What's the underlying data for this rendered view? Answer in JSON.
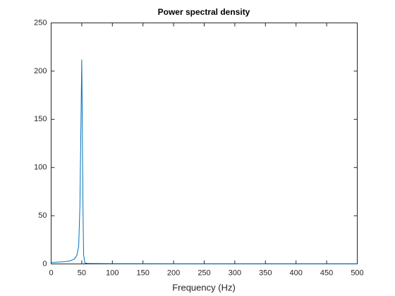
{
  "chart_data": {
    "type": "line",
    "title": "Power spectral density",
    "xlabel": "Frequency (Hz)",
    "x": [
      0,
      10,
      20,
      30,
      38,
      42,
      45,
      47,
      50,
      52,
      53,
      55,
      60,
      100,
      200,
      300,
      400,
      500
    ],
    "series": [
      {
        "name": "PSD",
        "color": "#0072bd",
        "values": [
          1.5,
          1.8,
          2.2,
          3,
          5,
          9,
          18,
          60,
          212,
          60,
          10,
          1,
          0.5,
          0.3,
          0.2,
          0.2,
          0.2,
          0.2
        ]
      }
    ],
    "xlim": [
      0,
      500
    ],
    "xticks": [
      0,
      50,
      100,
      150,
      200,
      250,
      300,
      350,
      400,
      450,
      500
    ],
    "ylim": [
      0,
      250
    ],
    "yticks": [
      0,
      50,
      100,
      150,
      200,
      250
    ],
    "grid": false
  }
}
